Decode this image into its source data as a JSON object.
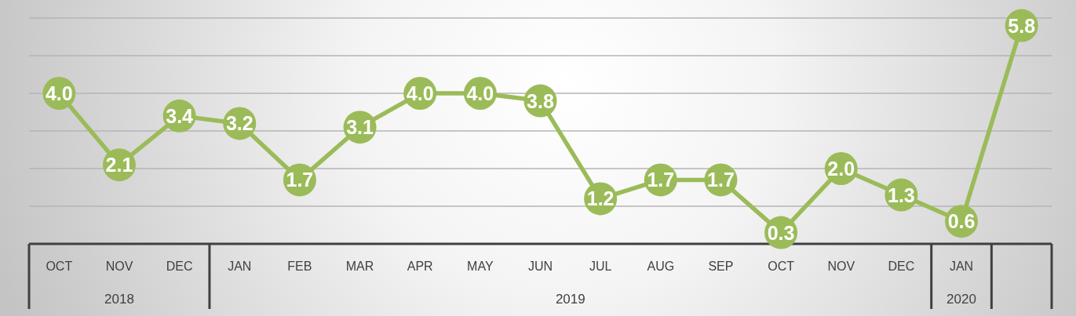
{
  "chart_data": {
    "type": "line",
    "categories": [
      "OCT",
      "NOV",
      "DEC",
      "JAN",
      "FEB",
      "MAR",
      "APR",
      "MAY",
      "JUN",
      "JUL",
      "AUG",
      "SEP",
      "OCT",
      "NOV",
      "DEC",
      "JAN",
      null
    ],
    "series": [
      {
        "color": "#9bbb59",
        "values": [
          4.0,
          2.1,
          3.4,
          3.2,
          1.7,
          3.1,
          4.0,
          4.0,
          3.8,
          1.2,
          1.7,
          1.7,
          0.3,
          2.0,
          1.3,
          0.6,
          5.8
        ],
        "value_labels": [
          "4.0",
          "2.1",
          "3.4",
          "3.2",
          "1.7",
          "3.1",
          "4.0",
          "4.0",
          "3.8",
          "1.2",
          "1.7",
          "1.7",
          "0.3",
          "2.0",
          "1.3",
          "0.6",
          "5.8"
        ]
      }
    ],
    "ylim": [
      0,
      6
    ],
    "yticks": [
      {
        "value": 0,
        "label": null
      },
      {
        "value": 1,
        "label": null
      },
      {
        "value": 2,
        "label": null
      },
      {
        "value": 3,
        "label": null
      },
      {
        "value": 4,
        "label": null
      },
      {
        "value": 5,
        "label": null
      },
      {
        "value": 6,
        "label": null
      }
    ],
    "grid": "y",
    "tick_labels": "x",
    "marker": "circle",
    "annotations": [
      "2018",
      "2019",
      "2020"
    ]
  }
}
